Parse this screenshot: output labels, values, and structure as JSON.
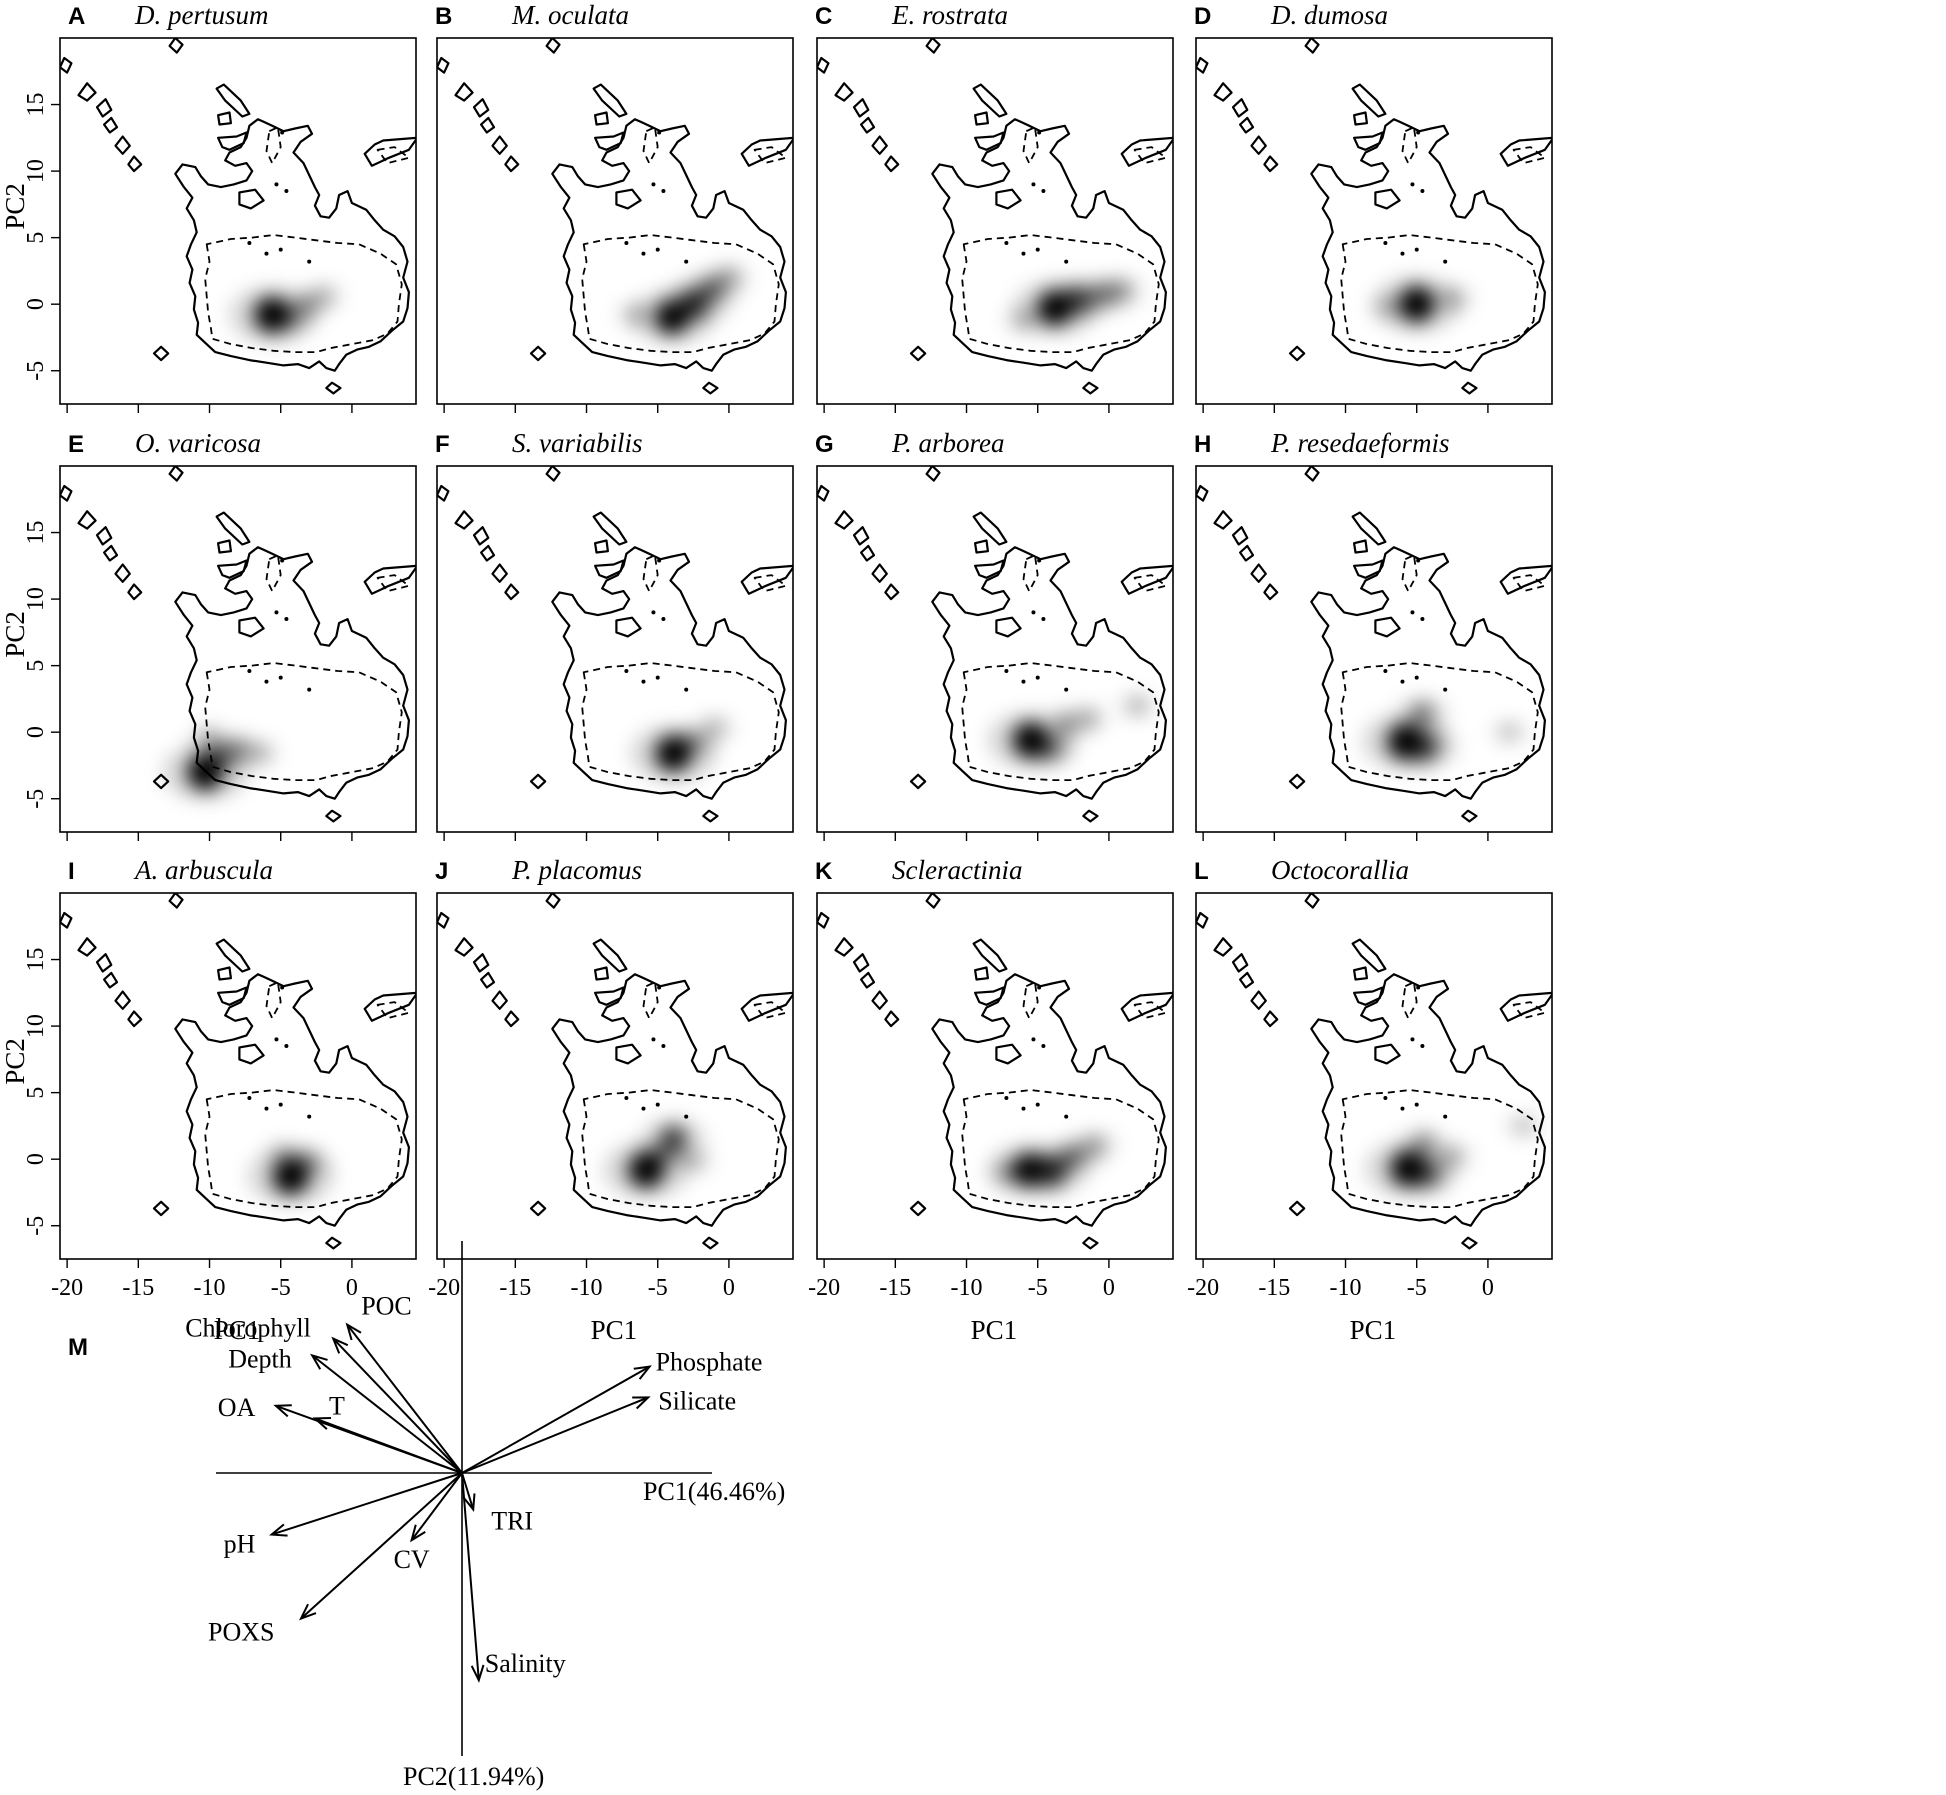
{
  "chart_data": {
    "type": "heatmap",
    "description_source": "small-multiples of kernel density in PCA environmental space",
    "x_axis": {
      "label": "PC1",
      "ticks": [
        -20,
        -15,
        -10,
        -5,
        0
      ],
      "range": [
        -20.5,
        4.5
      ]
    },
    "y_axis": {
      "label": "PC2",
      "ticks": [
        -5,
        0,
        5,
        10,
        15
      ],
      "range": [
        -7.5,
        20
      ]
    },
    "panels": [
      {
        "letter": "A",
        "title": "D. pertusum",
        "peaks": [
          {
            "x": -5.6,
            "y": -0.8,
            "w": 1.0
          },
          {
            "x": -4.5,
            "y": -1.0,
            "w": 0.35
          },
          {
            "x": -3.2,
            "y": -0.1,
            "w": 0.22
          },
          {
            "x": -2.0,
            "y": 0.6,
            "w": 0.12
          }
        ]
      },
      {
        "letter": "B",
        "title": "M. oculata",
        "peaks": [
          {
            "x": -4.0,
            "y": -1.0,
            "w": 0.9
          },
          {
            "x": -2.5,
            "y": 0.0,
            "w": 0.7
          },
          {
            "x": -1.2,
            "y": 1.1,
            "w": 0.45
          },
          {
            "x": -6.5,
            "y": -0.8,
            "w": 0.12
          },
          {
            "x": 0.0,
            "y": 2.0,
            "w": 0.18
          }
        ]
      },
      {
        "letter": "C",
        "title": "E. rostrata",
        "peaks": [
          {
            "x": -3.8,
            "y": -0.3,
            "w": 0.95
          },
          {
            "x": -2.2,
            "y": 0.3,
            "w": 0.6
          },
          {
            "x": -0.5,
            "y": 0.7,
            "w": 0.35
          },
          {
            "x": 0.8,
            "y": 1.0,
            "w": 0.25
          },
          {
            "x": -6.0,
            "y": -1.2,
            "w": 0.1
          }
        ]
      },
      {
        "letter": "D",
        "title": "D. dumosa",
        "peaks": [
          {
            "x": -5.0,
            "y": 0.0,
            "w": 1.0
          },
          {
            "x": -2.5,
            "y": 0.4,
            "w": 0.15
          },
          {
            "x": -7.0,
            "y": -0.2,
            "w": 0.08
          }
        ]
      },
      {
        "letter": "E",
        "title": "O. varicosa",
        "peaks": [
          {
            "x": -10.3,
            "y": -3.0,
            "w": 1.0
          },
          {
            "x": -9.2,
            "y": -1.8,
            "w": 0.4
          },
          {
            "x": -8.0,
            "y": -1.3,
            "w": 0.25
          },
          {
            "x": -6.5,
            "y": -1.6,
            "w": 0.12
          },
          {
            "x": -10.0,
            "y": -0.5,
            "w": 0.15
          }
        ]
      },
      {
        "letter": "F",
        "title": "S. variabilis",
        "peaks": [
          {
            "x": -3.9,
            "y": -1.6,
            "w": 1.0
          },
          {
            "x": -2.5,
            "y": -0.8,
            "w": 0.25
          },
          {
            "x": -1.0,
            "y": 0.3,
            "w": 0.12
          }
        ]
      },
      {
        "letter": "G",
        "title": "P. arborea",
        "peaks": [
          {
            "x": -5.5,
            "y": -0.6,
            "w": 1.0
          },
          {
            "x": -4.2,
            "y": -1.2,
            "w": 0.4
          },
          {
            "x": -3.0,
            "y": 0.6,
            "w": 0.22
          },
          {
            "x": -1.5,
            "y": 1.0,
            "w": 0.15
          },
          {
            "x": 2.0,
            "y": 2.0,
            "w": 0.1
          }
        ]
      },
      {
        "letter": "H",
        "title": "P. resedaeformis",
        "peaks": [
          {
            "x": -5.8,
            "y": -0.7,
            "w": 1.0
          },
          {
            "x": -4.5,
            "y": -1.1,
            "w": 0.6
          },
          {
            "x": -4.6,
            "y": 1.4,
            "w": 0.35
          },
          {
            "x": 1.5,
            "y": 0.0,
            "w": 0.05
          }
        ]
      },
      {
        "letter": "I",
        "title": "A. arbuscula",
        "peaks": [
          {
            "x": -4.3,
            "y": -1.3,
            "w": 1.0
          },
          {
            "x": -3.2,
            "y": -0.3,
            "w": 0.3
          },
          {
            "x": -4.8,
            "y": 0.3,
            "w": 0.12
          }
        ]
      },
      {
        "letter": "J",
        "title": "P. placomus",
        "peaks": [
          {
            "x": -5.8,
            "y": -0.8,
            "w": 1.0
          },
          {
            "x": -3.9,
            "y": 1.5,
            "w": 0.6
          },
          {
            "x": -4.8,
            "y": 0.2,
            "w": 0.25
          },
          {
            "x": -2.5,
            "y": -0.1,
            "w": 0.1
          }
        ]
      },
      {
        "letter": "K",
        "title": "Scleractinia",
        "peaks": [
          {
            "x": -5.6,
            "y": -0.8,
            "w": 0.9
          },
          {
            "x": -4.0,
            "y": -0.9,
            "w": 0.7
          },
          {
            "x": -2.5,
            "y": 0.2,
            "w": 0.4
          },
          {
            "x": -1.0,
            "y": 1.0,
            "w": 0.22
          },
          {
            "x": -7.0,
            "y": -1.0,
            "w": 0.2
          }
        ]
      },
      {
        "letter": "L",
        "title": "Octocorallia",
        "peaks": [
          {
            "x": -5.6,
            "y": -0.7,
            "w": 1.0
          },
          {
            "x": -4.3,
            "y": -1.1,
            "w": 0.5
          },
          {
            "x": -4.5,
            "y": 1.2,
            "w": 0.25
          },
          {
            "x": -2.5,
            "y": 0.2,
            "w": 0.15
          },
          {
            "x": 2.5,
            "y": 2.5,
            "w": 0.05
          }
        ]
      }
    ],
    "biplot": {
      "letter": "M",
      "type": "biplot",
      "pc1_label": "PC1(46.46%)",
      "pc2_label": "PC2(11.94%)",
      "vectors": [
        {
          "label": "Chlorophyll",
          "x": -0.92,
          "y": 0.96
        },
        {
          "label": "POC",
          "x": -0.82,
          "y": 1.06
        },
        {
          "label": "Depth",
          "x": -1.07,
          "y": 0.84
        },
        {
          "label": "OA",
          "x": -1.33,
          "y": 0.48
        },
        {
          "label": "T",
          "x": -1.05,
          "y": 0.39
        },
        {
          "label": "pH",
          "x": -1.36,
          "y": -0.44
        },
        {
          "label": "CV",
          "x": -0.36,
          "y": -0.48
        },
        {
          "label": "POXS",
          "x": -1.15,
          "y": -1.04
        },
        {
          "label": "Salinity",
          "x": 0.12,
          "y": -1.48
        },
        {
          "label": "TRI",
          "x": 0.08,
          "y": -0.26
        },
        {
          "label": "Phosphate",
          "x": 1.34,
          "y": 0.76
        },
        {
          "label": "Silicate",
          "x": 1.33,
          "y": 0.54
        }
      ]
    }
  }
}
